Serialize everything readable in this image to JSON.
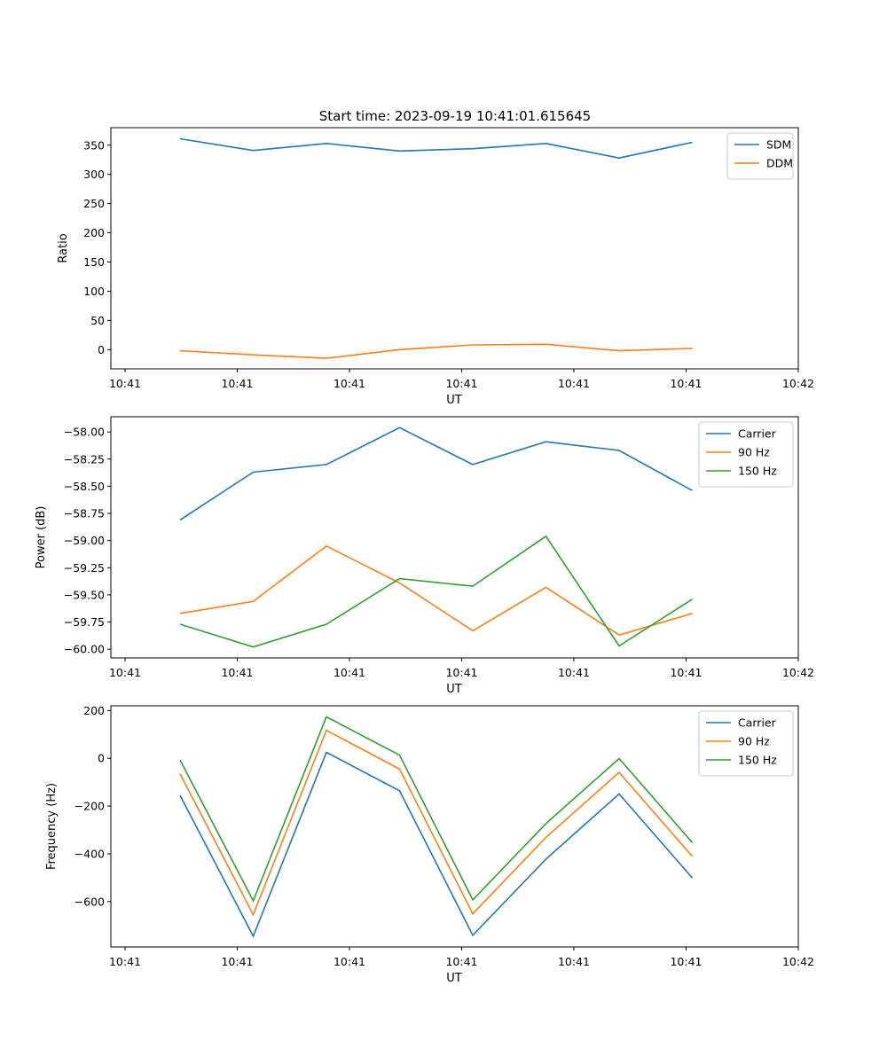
{
  "figure": {
    "title": "Start time: 2023-09-19 10:41:01.615645"
  },
  "chart_data": [
    {
      "type": "line",
      "ylabel": "Ratio",
      "xlabel": "UT",
      "ylim": [
        -33,
        380
      ],
      "yticks": [
        0,
        50,
        100,
        150,
        200,
        250,
        300,
        350
      ],
      "x_tick_labels": [
        "10:41",
        "10:41",
        "10:41",
        "10:41",
        "10:41",
        "10:41",
        "10:42"
      ],
      "legend_position": "top-right",
      "x": [
        1,
        2,
        3,
        4,
        5,
        6,
        7,
        8
      ],
      "series": [
        {
          "name": "SDM",
          "color": "#1f77b4",
          "values": [
            361,
            341,
            353,
            340,
            344,
            353,
            328,
            355
          ]
        },
        {
          "name": "DDM",
          "color": "#ff7f0e",
          "values": [
            -2,
            -9,
            -15,
            0,
            8,
            9,
            -2,
            2
          ]
        }
      ]
    },
    {
      "type": "line",
      "ylabel": "Power (dB)",
      "xlabel": "UT",
      "ylim": [
        -60.08,
        -57.86
      ],
      "yticks": [
        -60.0,
        -59.75,
        -59.5,
        -59.25,
        -59.0,
        -58.75,
        -58.5,
        -58.25,
        -58.0
      ],
      "ytick_labels": [
        "−60.00",
        "−59.75",
        "−59.50",
        "−59.25",
        "−59.00",
        "−58.75",
        "−58.50",
        "−58.25",
        "−58.00"
      ],
      "x_tick_labels": [
        "10:41",
        "10:41",
        "10:41",
        "10:41",
        "10:41",
        "10:41",
        "10:42"
      ],
      "legend_position": "top-right",
      "x": [
        1,
        2,
        3,
        4,
        5,
        6,
        7,
        8
      ],
      "series": [
        {
          "name": "Carrier",
          "color": "#1f77b4",
          "values": [
            -58.81,
            -58.37,
            -58.3,
            -57.96,
            -58.3,
            -58.09,
            -58.17,
            -58.54
          ]
        },
        {
          "name": "90 Hz",
          "color": "#ff7f0e",
          "values": [
            -59.67,
            -59.56,
            -59.05,
            -59.39,
            -59.83,
            -59.43,
            -59.87,
            -59.67
          ]
        },
        {
          "name": "150 Hz",
          "color": "#2ca02c",
          "values": [
            -59.77,
            -59.98,
            -59.77,
            -59.35,
            -59.42,
            -58.96,
            -59.97,
            -59.54
          ]
        }
      ]
    },
    {
      "type": "line",
      "ylabel": "Frequency (Hz)",
      "xlabel": "UT",
      "ylim": [
        -790,
        220
      ],
      "yticks": [
        -600,
        -400,
        -200,
        0,
        200
      ],
      "ytick_labels": [
        "−600",
        "−400",
        "−200",
        "0",
        "200"
      ],
      "x_tick_labels": [
        "10:41",
        "10:41",
        "10:41",
        "10:41",
        "10:41",
        "10:41",
        "10:42"
      ],
      "legend_position": "top-right",
      "x": [
        1,
        2,
        3,
        4,
        5,
        6,
        7,
        8
      ],
      "series": [
        {
          "name": "Carrier",
          "color": "#1f77b4",
          "values": [
            -155,
            -745,
            25,
            -136,
            -741,
            -422,
            -149,
            -501
          ]
        },
        {
          "name": "90 Hz",
          "color": "#ff7f0e",
          "values": [
            -65,
            -655,
            117,
            -45,
            -651,
            -331,
            -59,
            -411
          ]
        },
        {
          "name": "150 Hz",
          "color": "#2ca02c",
          "values": [
            -7,
            -597,
            174,
            13,
            -593,
            -273,
            -1,
            -353
          ]
        }
      ]
    }
  ]
}
